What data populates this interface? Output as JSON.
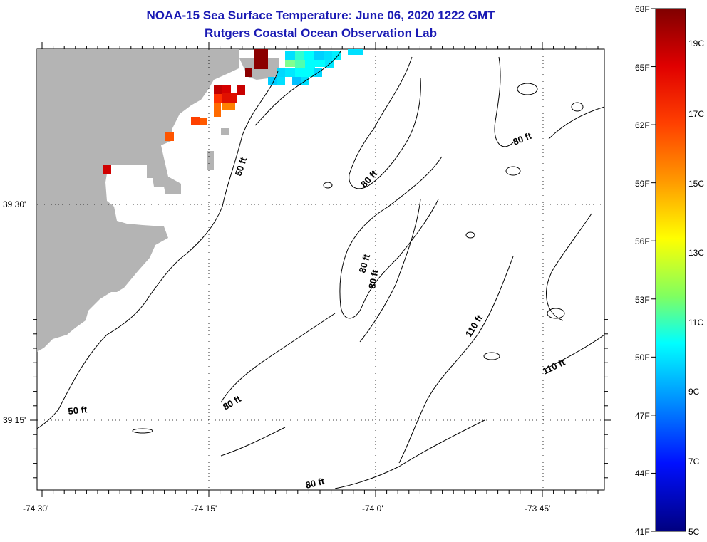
{
  "title_line1": "NOAA-15 Sea Surface Temperature:  June 06, 2020 1222 GMT",
  "title_line2": "Rutgers Coastal Ocean Observation Lab",
  "axes": {
    "lat_labels": [
      "39 30'",
      "39 15'"
    ],
    "lon_labels": [
      "-74 30'",
      "-74 15'",
      "-74 0'",
      "-73 45'"
    ]
  },
  "contour_labels": [
    "50 ft",
    "80 ft",
    "80 ft",
    "80 ft",
    "80 ft",
    "80 ft",
    "80 ft",
    "110 ft",
    "110 ft",
    "50 ft"
  ],
  "colorbar": {
    "fahrenheit": [
      "68F",
      "65F",
      "62F",
      "59F",
      "56F",
      "53F",
      "50F",
      "47F",
      "44F",
      "41F"
    ],
    "celsius": [
      "19C",
      "17C",
      "15C",
      "13C",
      "11C",
      "9C",
      "7C",
      "5C"
    ],
    "colors": [
      "#800000",
      "#ff0000",
      "#ff8000",
      "#ffff00",
      "#80ff80",
      "#00ffff",
      "#0080ff",
      "#0000ff",
      "#000080"
    ]
  },
  "colors": {
    "land": "#b4b4b4",
    "contour": "#000000",
    "title": "#1a1ab4"
  }
}
